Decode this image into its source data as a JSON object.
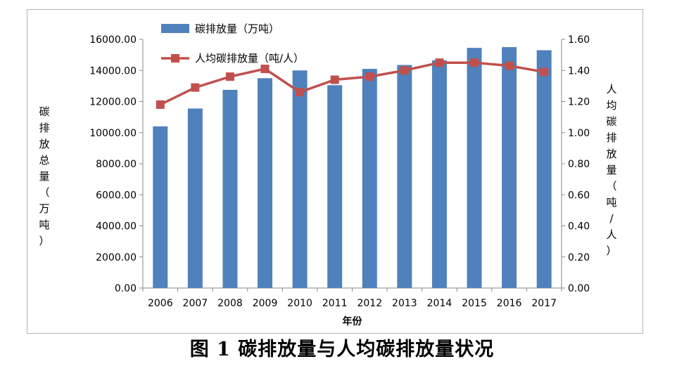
{
  "caption": "图 1  碳排放量与人均碳排放量状况",
  "chart_data": {
    "type": "bar+line",
    "categories": [
      "2006",
      "2007",
      "2008",
      "2009",
      "2010",
      "2011",
      "2012",
      "2013",
      "2014",
      "2015",
      "2016",
      "2017"
    ],
    "series": [
      {
        "name": "碳排放量（万吨）",
        "type": "bar",
        "axis": "left",
        "color": "#4f81bd",
        "values": [
          10400,
          11550,
          12750,
          13500,
          14000,
          13050,
          14100,
          14350,
          14650,
          15450,
          15500,
          15300
        ]
      },
      {
        "name": "人均碳排放量（吨/人）",
        "type": "line",
        "axis": "right",
        "color": "#c0504d",
        "values": [
          1.18,
          1.29,
          1.36,
          1.41,
          1.26,
          1.34,
          1.36,
          1.4,
          1.45,
          1.45,
          1.43,
          1.39
        ]
      }
    ],
    "left_axis": {
      "title": "碳排放总量（万吨）",
      "ylim": [
        0,
        16000
      ],
      "ticks": [
        "0.00",
        "2000.00",
        "4000.00",
        "6000.00",
        "8000.00",
        "10000.00",
        "12000.00",
        "14000.00",
        "16000.00"
      ]
    },
    "right_axis": {
      "title": "人均碳排放量（吨/人）",
      "ylim": [
        0,
        1.6
      ],
      "ticks": [
        "0.00",
        "0.20",
        "0.40",
        "0.60",
        "0.80",
        "1.00",
        "1.20",
        "1.40",
        "1.60"
      ]
    },
    "xlabel": "年份",
    "legend_position": "top-left",
    "grid": false
  }
}
